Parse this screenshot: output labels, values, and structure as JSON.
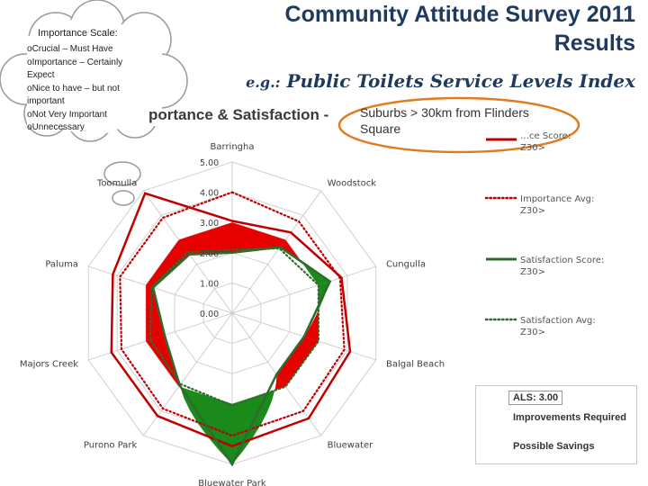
{
  "header": {
    "title_line1": "Community Attitude Survey 2011",
    "title_line2": "Results",
    "subtitle_prefix": "e.g.:",
    "subtitle_main": "Public Toilets Service Levels Index"
  },
  "chart_title_visible": "portance & Satisfaction -",
  "note": "Suburbs  > 30km from Flinders Square",
  "scale_cloud": {
    "title": "Importance Scale:",
    "items": [
      "Crucial – Must Have",
      "Importance – Certainly Expect",
      "Nice to have – but not important",
      "Not Very  Important",
      "Unnecessary"
    ]
  },
  "legend": {
    "items": [
      {
        "line1": "…ce Score:",
        "line2": "Z30>",
        "style": "solid",
        "color": "#c00000"
      },
      {
        "line1": "Importance Avg:",
        "line2": "Z30>",
        "style": "dotted",
        "color": "#c00000"
      },
      {
        "line1": "Satisfaction Score:",
        "line2": "Z30>",
        "style": "solid",
        "color": "#2e6b2e"
      },
      {
        "line1": "Satisfaction Avg:",
        "line2": "Z30>",
        "style": "dotted",
        "color": "#2e6b2e"
      }
    ]
  },
  "als_box": {
    "header": "ALS: 3.00",
    "improvements_label": "Improvements Required",
    "savings_label": "Possible Savings",
    "improvements_color": "#e60000",
    "savings_color": "#1a8a1a"
  },
  "chart_data": {
    "type": "radar",
    "categories": [
      "Barringha",
      "Woodstock",
      "Cungulla",
      "Balgal Beach",
      "Bluewater",
      "Bluewater Park",
      "Purono Park",
      "Majors Creek",
      "Paluma",
      "Toomulla"
    ],
    "rlim": [
      0,
      5
    ],
    "ticks": [
      "0.00",
      "1.00",
      "2.00",
      "3.00",
      "4.00",
      "5.00"
    ],
    "als": 3.0,
    "series": [
      {
        "name": "Importance Score",
        "style": "solid",
        "color": "#c00000",
        "values": [
          3.05,
          3.3,
          3.8,
          4.1,
          4.3,
          4.4,
          4.2,
          4.2,
          4.15,
          4.9
        ]
      },
      {
        "name": "Importance Avg",
        "style": "dotted",
        "color": "#c00000",
        "values": [
          4.0,
          3.75,
          3.75,
          3.9,
          4.0,
          4.05,
          3.9,
          3.85,
          3.9,
          3.9
        ]
      },
      {
        "name": "Satisfaction Score",
        "style": "solid",
        "color": "#2e6b2e",
        "values": [
          2.0,
          2.7,
          3.4,
          2.5,
          2.5,
          5.0,
          2.95,
          2.35,
          2.75,
          2.4
        ]
      },
      {
        "name": "Satisfaction Avg",
        "style": "dotted",
        "color": "#2e6b2e",
        "values": [
          2.1,
          2.65,
          3.0,
          3.0,
          3.0,
          3.05,
          2.9,
          2.85,
          2.8,
          2.5
        ]
      }
    ]
  }
}
